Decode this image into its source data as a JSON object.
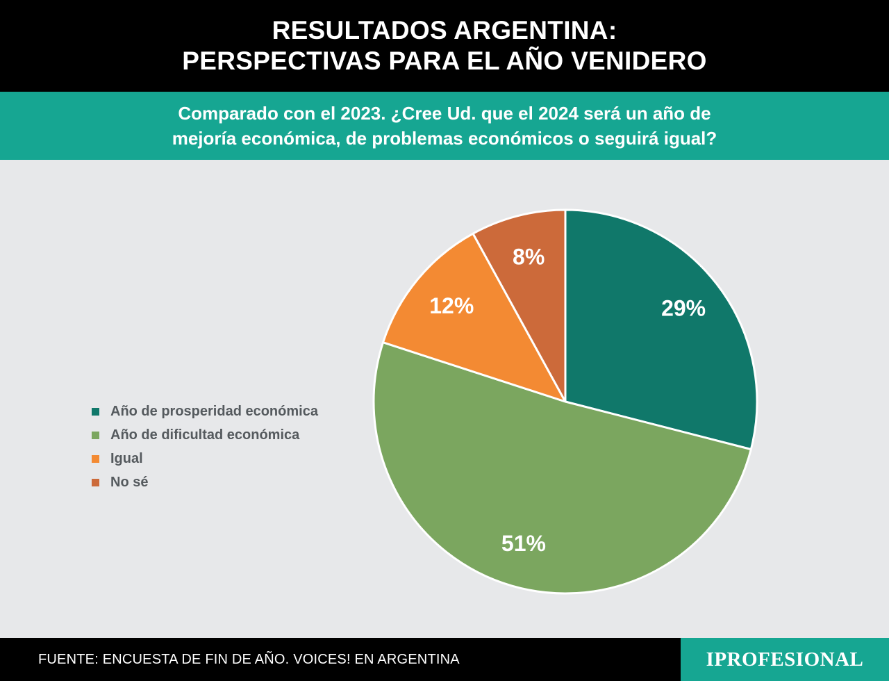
{
  "header": {
    "title_line1": "RESULTADOS ARGENTINA:",
    "title_line2": "PERSPECTIVAS PARA EL AÑO VENIDERO"
  },
  "question": {
    "line1": "Comparado con el 2023. ¿Cree Ud. que el 2024 será un año de",
    "line2": "mejoría económica, de problemas económicos o seguirá igual?"
  },
  "chart_data": {
    "type": "pie",
    "slices": [
      {
        "label": "Año de prosperidad económica",
        "value": 29,
        "display": "29%",
        "color": "#10786a"
      },
      {
        "label": "Año de dificultad económica",
        "value": 51,
        "display": "51%",
        "color": "#7ba65f"
      },
      {
        "label": "Igual",
        "value": 12,
        "display": "12%",
        "color": "#f38a33"
      },
      {
        "label": "No sé",
        "value": 8,
        "display": "8%",
        "color": "#cc6a3a"
      }
    ],
    "legend_position": "left"
  },
  "footer": {
    "source": "FUENTE: ENCUESTA DE FIN DE AÑO. VOICES! EN ARGENTINA",
    "brand": "IPROFESIONAL"
  }
}
